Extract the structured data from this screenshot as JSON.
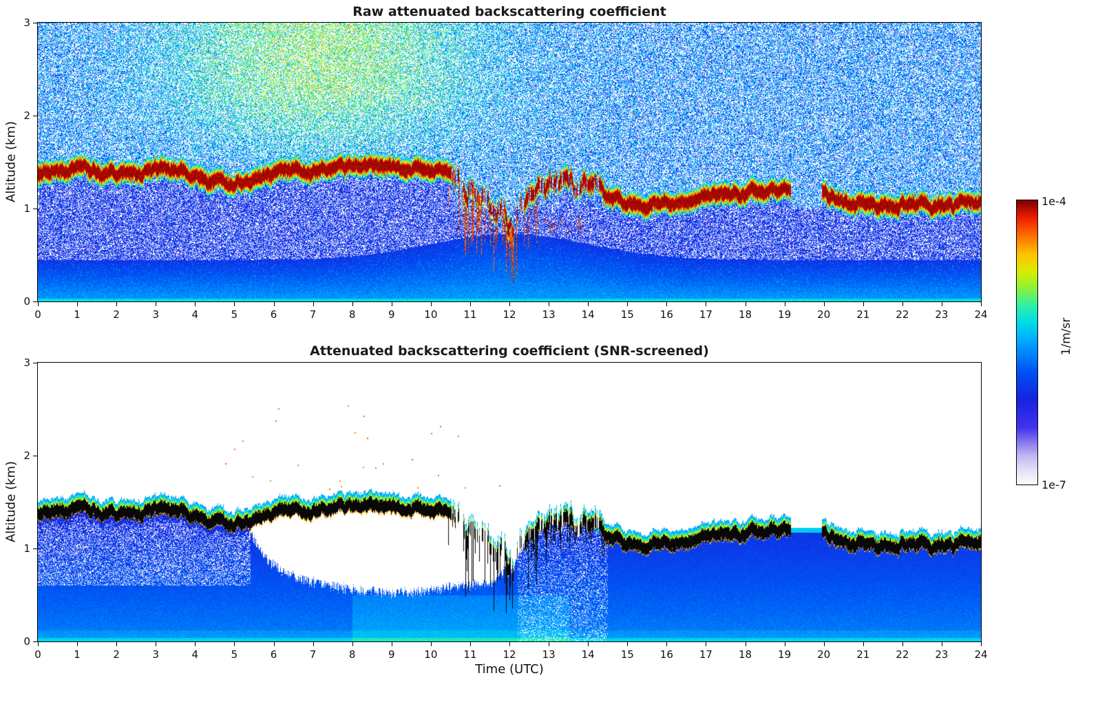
{
  "figure": {
    "background": "#ffffff"
  },
  "panels": [
    {
      "title": "Raw attenuated backscattering coefficient",
      "mode": "raw"
    },
    {
      "title": "Attenuated backscattering coefficient (SNR-screened)",
      "mode": "screened"
    }
  ],
  "axes": {
    "x": {
      "label": "Time (UTC)",
      "min": 0,
      "max": 24,
      "tick_step": 1
    },
    "y": {
      "label": "Altitude (km)",
      "min": 0,
      "max": 3,
      "tick_step": 1
    }
  },
  "colorbar": {
    "label": "1/m/sr",
    "max_label": "1e-4",
    "min_label": "1e-7",
    "stops": [
      [
        0.0,
        "#ffffff"
      ],
      [
        0.05,
        "#e6e1fa"
      ],
      [
        0.1,
        "#c3baf2"
      ],
      [
        0.15,
        "#8878ec"
      ],
      [
        0.2,
        "#4335ee"
      ],
      [
        0.3,
        "#1723e0"
      ],
      [
        0.4,
        "#0054f4"
      ],
      [
        0.5,
        "#00a4ff"
      ],
      [
        0.57,
        "#00dcea"
      ],
      [
        0.63,
        "#2df0a8"
      ],
      [
        0.69,
        "#8af23c"
      ],
      [
        0.75,
        "#d8ee00"
      ],
      [
        0.81,
        "#ffc400"
      ],
      [
        0.875,
        "#ff7100"
      ],
      [
        0.94,
        "#f01d00"
      ],
      [
        1.0,
        "#7f0000"
      ]
    ]
  },
  "chart_data": [
    {
      "type": "heatmap",
      "title": "Raw attenuated backscattering coefficient",
      "xlabel": "Time (UTC)",
      "ylabel": "Altitude (km)",
      "x_range": [
        0,
        24
      ],
      "y_range": [
        0,
        3
      ],
      "value_scale": "log",
      "value_range": [
        "1e-7",
        "1e-4"
      ],
      "units": "1/m/sr",
      "cloud_layer_base_km": {
        "x": [
          0,
          0.7,
          1.5,
          2.2,
          3,
          3.7,
          4.0,
          4.25,
          4.6,
          4.9,
          5.1,
          5.35,
          5.7,
          6.2,
          7,
          8,
          9,
          9.8,
          10.4,
          11,
          11.5,
          12,
          12.35,
          12.7,
          13.1,
          13.45,
          13.8,
          14.1,
          14.5,
          14.9,
          15.5,
          16.5,
          17.5,
          18.3,
          19,
          19.6,
          20.1,
          20.5,
          21.5,
          22.5,
          23.2,
          23.7,
          24
        ],
        "y": [
          1.4,
          1.42,
          1.41,
          1.4,
          1.42,
          1.41,
          1.38,
          1.26,
          1.32,
          1.22,
          1.3,
          1.27,
          1.36,
          1.4,
          1.42,
          1.45,
          1.44,
          1.42,
          1.4,
          1.28,
          1.08,
          0.92,
          1.08,
          1.22,
          1.28,
          1.32,
          1.22,
          1.26,
          1.12,
          1.04,
          1.05,
          1.09,
          1.14,
          1.18,
          1.2,
          1.17,
          1.13,
          1.06,
          1.05,
          1.06,
          1.05,
          1.09,
          1.1
        ]
      },
      "cloud_gaps_utc": [
        [
          19.15,
          19.95
        ]
      ],
      "cloud_broken_intervals_utc": [
        [
          10.5,
          12.4
        ],
        [
          12.4,
          14.4
        ]
      ],
      "features": "Persistent stratiform cloud layer near 1.0-1.45 km (saturated, dark red); boundary-layer aerosol below ~0.5 km (blue/cyan); background noise speckle aloft, strongest (yellow-green) between ~04-11 UTC above ~1.5 km; layer breaks up and descends with virga streaks 10.5-12.5 UTC"
    },
    {
      "type": "heatmap",
      "title": "Attenuated backscattering coefficient (SNR-screened)",
      "xlabel": "Time (UTC)",
      "ylabel": "Altitude (km)",
      "x_range": [
        0,
        24
      ],
      "y_range": [
        0,
        3
      ],
      "value_scale": "log",
      "value_range": [
        "1e-7",
        "1e-4"
      ],
      "units": "1/m/sr",
      "cloud_layer_same_as_raw_panel": true,
      "screened_out_below_cloud_utc": {
        "x": [
          5.4,
          5.9,
          6.5,
          7.2,
          8,
          9,
          10,
          10.8,
          11.5,
          12.1
        ],
        "bottom_km": [
          1.15,
          0.85,
          0.7,
          0.62,
          0.56,
          0.52,
          0.55,
          0.6,
          0.62,
          0.85
        ]
      },
      "features": "Low-SNR pixels removed (white) above the boundary layer and below the cloud between ~5.4-12.1 UTC; saturated cloud layer rendered black with thin yellow/green/cyan fringes; blue aerosol-filled boundary layer below"
    }
  ]
}
